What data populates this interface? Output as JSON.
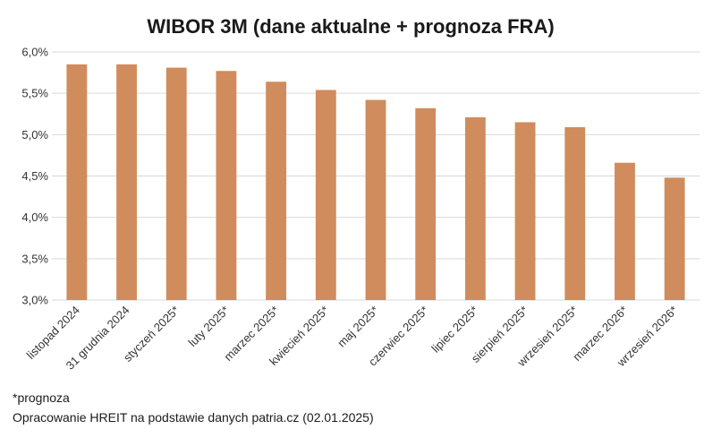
{
  "chart_data": {
    "type": "bar",
    "title": "WIBOR 3M (dane aktualne + prognoza FRA)",
    "xlabel": "",
    "ylabel": "",
    "ylim": [
      3.0,
      6.0
    ],
    "yticks": [
      3.0,
      3.5,
      4.0,
      4.5,
      5.0,
      5.5,
      6.0
    ],
    "ytick_labels": [
      "3,0%",
      "3,5%",
      "4,0%",
      "4,5%",
      "5,0%",
      "5,5%",
      "6,0%"
    ],
    "grid": true,
    "legend": "none",
    "bar_color": "#d08c5c",
    "categories": [
      "listopad 2024",
      "31 grudnia 2024",
      "styczeń 2025*",
      "luty 2025*",
      "marzec 2025*",
      "kwiecień 2025*",
      "maj 2025*",
      "czerwiec 2025*",
      "lipiec 2025*",
      "sierpień 2025*",
      "wrzesień 2025*",
      "marzec 2026*",
      "wrzesień 2026*"
    ],
    "values": [
      5.85,
      5.85,
      5.81,
      5.77,
      5.64,
      5.54,
      5.42,
      5.32,
      5.21,
      5.15,
      5.09,
      4.66,
      4.48
    ]
  },
  "footnotes": {
    "forecast_note": "*prognoza",
    "source": "Opracowanie HREIT na podstawie danych patria.cz (02.01.2025)"
  }
}
